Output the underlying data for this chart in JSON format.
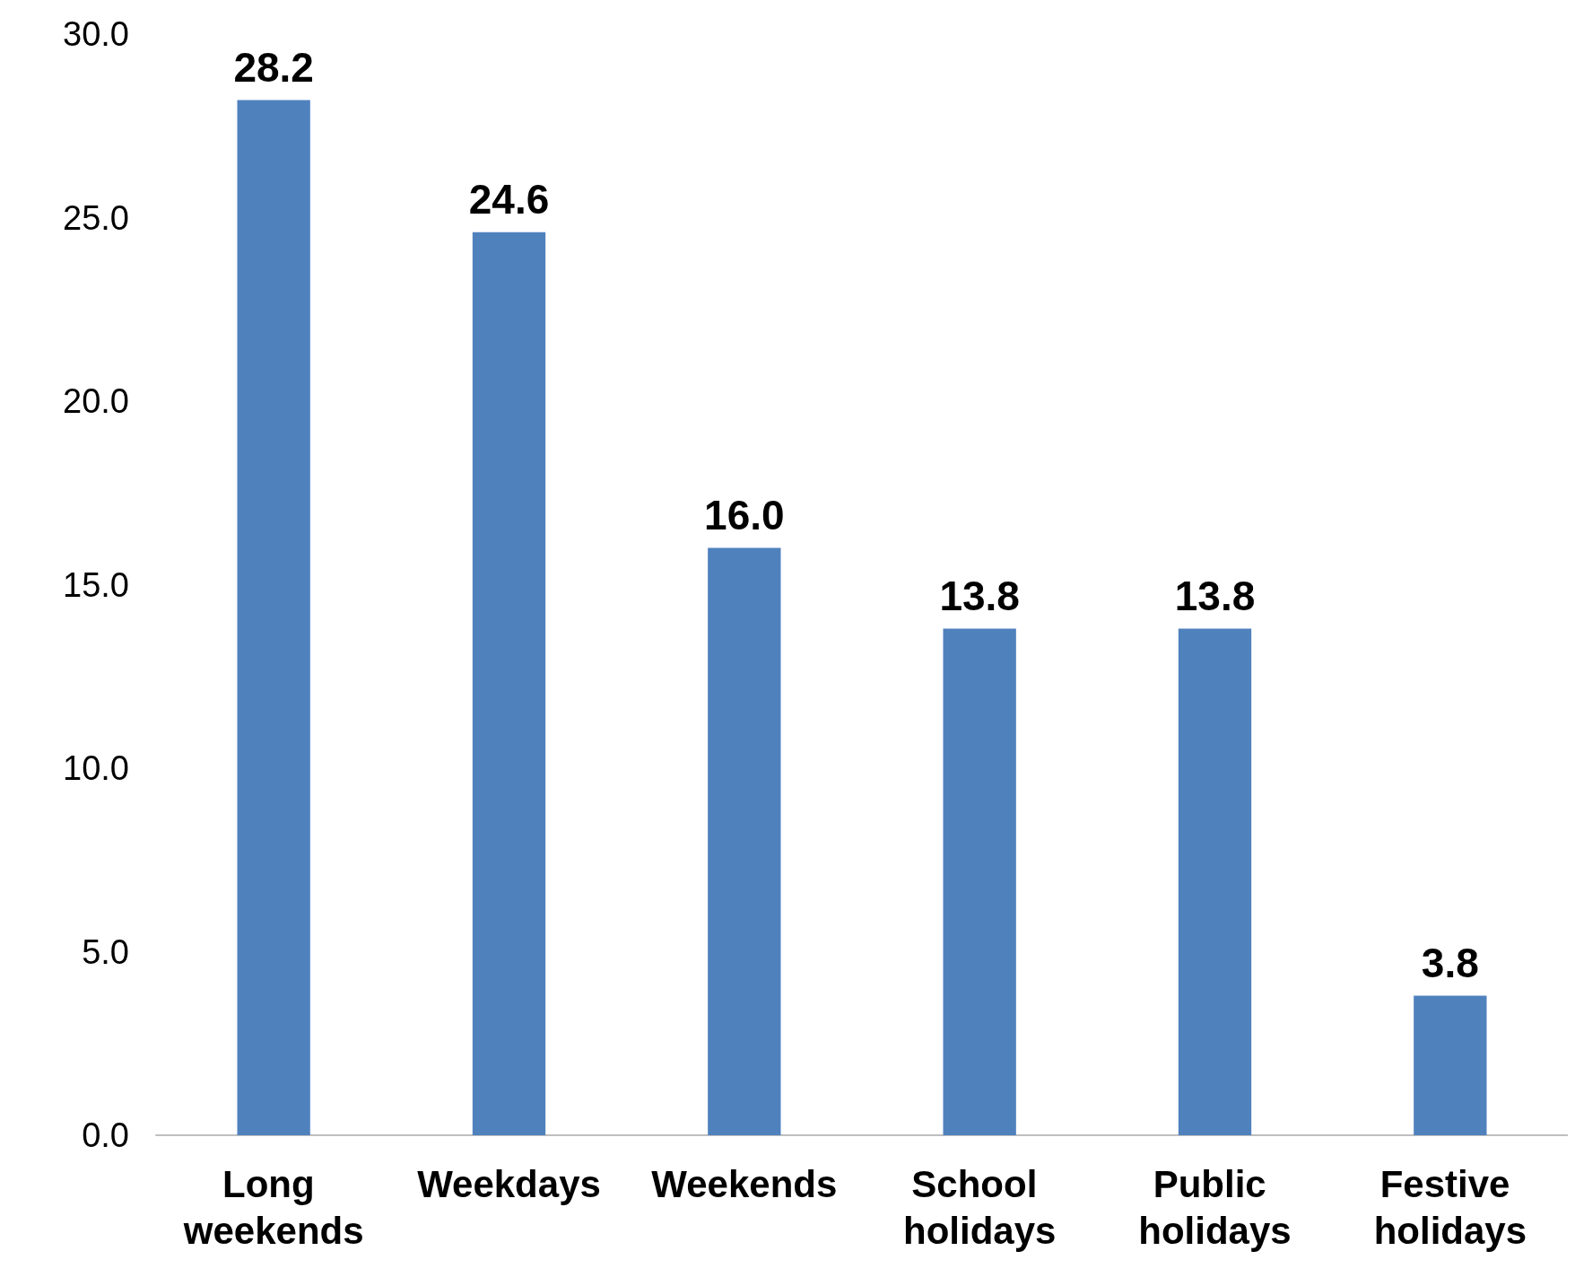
{
  "chart_data": {
    "type": "bar",
    "categories": [
      "Long weekends",
      "Weekdays",
      "Weekends",
      "School holidays",
      "Public holidays",
      "Festive holidays"
    ],
    "values": [
      28.2,
      24.6,
      16.0,
      13.8,
      13.8,
      3.8
    ],
    "color": "#4f81bd",
    "ylim": [
      0,
      30
    ],
    "yticks": [
      {
        "value": 0,
        "label": "0.0"
      },
      {
        "value": 5,
        "label": "5.0"
      },
      {
        "value": 10,
        "label": "10.0"
      },
      {
        "value": 15,
        "label": "15.0"
      },
      {
        "value": 20,
        "label": "20.0"
      },
      {
        "value": 25,
        "label": "25.0"
      },
      {
        "value": 30,
        "label": "30.0"
      }
    ],
    "value_labels": [
      "28.2",
      "24.6",
      "16.0",
      "13.8",
      "13.8",
      "3.8"
    ],
    "grid": false
  }
}
